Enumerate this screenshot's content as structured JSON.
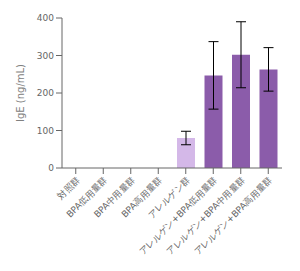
{
  "chart_data": {
    "type": "bar",
    "categories": [
      "対照群",
      "BPA低用量群",
      "BPA中用量群",
      "BPA高用量群",
      "アレルゲン群",
      "アレルゲン+BPA低用量群",
      "アレルゲン+BPA中用量群",
      "アレルゲン+BPA高用量群"
    ],
    "values": [
      0,
      0,
      0,
      0,
      80,
      247,
      302,
      263
    ],
    "errors": [
      0,
      0,
      0,
      0,
      18,
      90,
      88,
      58
    ],
    "colors": [
      "#c8b8e0",
      "#c8b8e0",
      "#c8b8e0",
      "#c8b8e0",
      "#d4b8e8",
      "#8b5caa",
      "#8b5caa",
      "#8b5caa"
    ],
    "ylabel": "IgE (ng/mL)",
    "ylim": [
      0,
      400
    ],
    "yticks": [
      0,
      100,
      200,
      300,
      400
    ]
  }
}
